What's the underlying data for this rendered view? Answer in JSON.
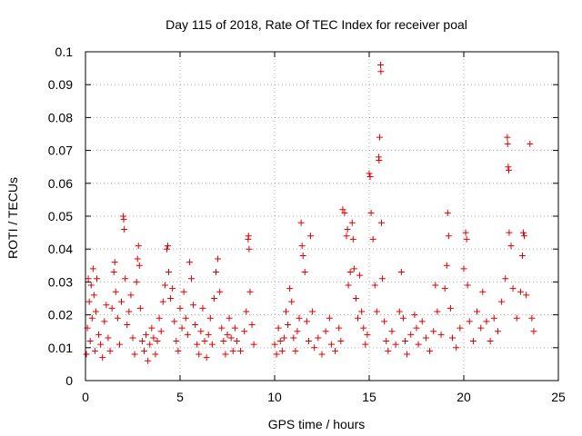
{
  "chart_data": {
    "type": "scatter",
    "title": "Day 115 of 2018, Rate Of TEC Index for receiver poal",
    "xlabel": "GPS time / hours",
    "ylabel": "ROTI / TECUs",
    "xlim": [
      0,
      25
    ],
    "ylim": [
      0,
      0.1
    ],
    "x_ticks": [
      0,
      5,
      10,
      15,
      20,
      25
    ],
    "x_tick_labels": [
      "0",
      "5",
      "10",
      "15",
      "20",
      "25"
    ],
    "y_ticks": [
      0,
      0.01,
      0.02,
      0.03,
      0.04,
      0.05,
      0.06,
      0.07,
      0.08,
      0.09,
      0.1
    ],
    "y_tick_labels": [
      "0",
      "0.01",
      "0.02",
      "0.03",
      "0.04",
      "0.05",
      "0.06",
      "0.07",
      "0.08",
      "0.09",
      "0.1"
    ],
    "grid": true,
    "marker": "+",
    "color": "#e00000",
    "series": [
      {
        "name": "ROTI",
        "points": [
          [
            0.05,
            0.008
          ],
          [
            0.1,
            0.016
          ],
          [
            0.15,
            0.031
          ],
          [
            0.2,
            0.024
          ],
          [
            0.25,
            0.012
          ],
          [
            0.3,
            0.029
          ],
          [
            0.35,
            0.019
          ],
          [
            0.4,
            0.034
          ],
          [
            0.45,
            0.026
          ],
          [
            0.5,
            0.009
          ],
          [
            0.55,
            0.021
          ],
          [
            0.6,
            0.031
          ],
          [
            0.7,
            0.014
          ],
          [
            0.8,
            0.011
          ],
          [
            0.9,
            0.007
          ],
          [
            1.0,
            0.018
          ],
          [
            1.1,
            0.023
          ],
          [
            1.2,
            0.013
          ],
          [
            1.3,
            0.009
          ],
          [
            1.4,
            0.022
          ],
          [
            1.5,
            0.033
          ],
          [
            1.55,
            0.036
          ],
          [
            1.6,
            0.027
          ],
          [
            1.7,
            0.019
          ],
          [
            1.8,
            0.011
          ],
          [
            1.9,
            0.024
          ],
          [
            2.0,
            0.05
          ],
          [
            2.02,
            0.049
          ],
          [
            2.05,
            0.046
          ],
          [
            2.1,
            0.031
          ],
          [
            2.2,
            0.017
          ],
          [
            2.3,
            0.021
          ],
          [
            2.4,
            0.026
          ],
          [
            2.5,
            0.013
          ],
          [
            2.6,
            0.008
          ],
          [
            2.7,
            0.03
          ],
          [
            2.75,
            0.037
          ],
          [
            2.8,
            0.041
          ],
          [
            2.85,
            0.035
          ],
          [
            2.9,
            0.022
          ],
          [
            3.0,
            0.012
          ],
          [
            3.1,
            0.009
          ],
          [
            3.2,
            0.014
          ],
          [
            3.3,
            0.006
          ],
          [
            3.4,
            0.011
          ],
          [
            3.5,
            0.016
          ],
          [
            3.6,
            0.013
          ],
          [
            3.7,
            0.008
          ],
          [
            3.8,
            0.012
          ],
          [
            3.9,
            0.019
          ],
          [
            4.0,
            0.015
          ],
          [
            4.1,
            0.024
          ],
          [
            4.2,
            0.029
          ],
          [
            4.3,
            0.04
          ],
          [
            4.35,
            0.041
          ],
          [
            4.4,
            0.033
          ],
          [
            4.5,
            0.025
          ],
          [
            4.6,
            0.028
          ],
          [
            4.7,
            0.018
          ],
          [
            4.8,
            0.012
          ],
          [
            4.9,
            0.009
          ],
          [
            5.0,
            0.022
          ],
          [
            5.1,
            0.016
          ],
          [
            5.2,
            0.027
          ],
          [
            5.3,
            0.019
          ],
          [
            5.4,
            0.014
          ],
          [
            5.5,
            0.036
          ],
          [
            5.6,
            0.031
          ],
          [
            5.7,
            0.023
          ],
          [
            5.8,
            0.017
          ],
          [
            5.9,
            0.011
          ],
          [
            6.0,
            0.008
          ],
          [
            6.1,
            0.015
          ],
          [
            6.2,
            0.022
          ],
          [
            6.3,
            0.012
          ],
          [
            6.4,
            0.007
          ],
          [
            6.5,
            0.014
          ],
          [
            6.6,
            0.019
          ],
          [
            6.7,
            0.011
          ],
          [
            6.8,
            0.025
          ],
          [
            6.9,
            0.033
          ],
          [
            7.0,
            0.037
          ],
          [
            7.1,
            0.027
          ],
          [
            7.2,
            0.016
          ],
          [
            7.3,
            0.012
          ],
          [
            7.4,
            0.008
          ],
          [
            7.5,
            0.014
          ],
          [
            7.6,
            0.019
          ],
          [
            7.7,
            0.013
          ],
          [
            7.8,
            0.009
          ],
          [
            7.9,
            0.016
          ],
          [
            8.0,
            0.012
          ],
          [
            8.2,
            0.009
          ],
          [
            8.4,
            0.015
          ],
          [
            8.5,
            0.021
          ],
          [
            8.6,
            0.043
          ],
          [
            8.62,
            0.044
          ],
          [
            8.65,
            0.04
          ],
          [
            8.7,
            0.027
          ],
          [
            8.8,
            0.017
          ],
          [
            8.9,
            0.011
          ],
          [
            10.0,
            0.011
          ],
          [
            10.1,
            0.008
          ],
          [
            10.2,
            0.016
          ],
          [
            10.3,
            0.012
          ],
          [
            10.4,
            0.009
          ],
          [
            10.5,
            0.013
          ],
          [
            10.6,
            0.021
          ],
          [
            10.7,
            0.017
          ],
          [
            10.8,
            0.028
          ],
          [
            10.9,
            0.024
          ],
          [
            11.0,
            0.013
          ],
          [
            11.1,
            0.009
          ],
          [
            11.2,
            0.015
          ],
          [
            11.3,
            0.019
          ],
          [
            11.4,
            0.048
          ],
          [
            11.45,
            0.041
          ],
          [
            11.5,
            0.038
          ],
          [
            11.6,
            0.033
          ],
          [
            11.7,
            0.018
          ],
          [
            11.8,
            0.012
          ],
          [
            11.9,
            0.044
          ],
          [
            12.0,
            0.021
          ],
          [
            12.1,
            0.01
          ],
          [
            12.3,
            0.013
          ],
          [
            12.5,
            0.008
          ],
          [
            12.7,
            0.015
          ],
          [
            12.9,
            0.019
          ],
          [
            13.0,
            0.011
          ],
          [
            13.2,
            0.009
          ],
          [
            13.4,
            0.016
          ],
          [
            13.5,
            0.012
          ],
          [
            13.6,
            0.052
          ],
          [
            13.7,
            0.051
          ],
          [
            13.8,
            0.044
          ],
          [
            13.85,
            0.046
          ],
          [
            13.9,
            0.029
          ],
          [
            14.0,
            0.033
          ],
          [
            14.1,
            0.048
          ],
          [
            14.15,
            0.043
          ],
          [
            14.2,
            0.034
          ],
          [
            14.3,
            0.025
          ],
          [
            14.4,
            0.019
          ],
          [
            14.5,
            0.032
          ],
          [
            14.6,
            0.021
          ],
          [
            14.7,
            0.016
          ],
          [
            14.8,
            0.011
          ],
          [
            14.9,
            0.014
          ],
          [
            15.0,
            0.063
          ],
          [
            15.05,
            0.062
          ],
          [
            15.1,
            0.051
          ],
          [
            15.2,
            0.043
          ],
          [
            15.3,
            0.029
          ],
          [
            15.4,
            0.021
          ],
          [
            15.5,
            0.068
          ],
          [
            15.52,
            0.067
          ],
          [
            15.55,
            0.074
          ],
          [
            15.6,
            0.096
          ],
          [
            15.62,
            0.094
          ],
          [
            15.65,
            0.048
          ],
          [
            15.7,
            0.031
          ],
          [
            15.8,
            0.018
          ],
          [
            15.9,
            0.012
          ],
          [
            16.0,
            0.009
          ],
          [
            16.2,
            0.015
          ],
          [
            16.4,
            0.011
          ],
          [
            16.6,
            0.021
          ],
          [
            16.7,
            0.033
          ],
          [
            16.8,
            0.019
          ],
          [
            16.9,
            0.012
          ],
          [
            17.0,
            0.008
          ],
          [
            17.2,
            0.014
          ],
          [
            17.4,
            0.02
          ],
          [
            17.5,
            0.016
          ],
          [
            17.6,
            0.011
          ],
          [
            17.8,
            0.018
          ],
          [
            18.0,
            0.013
          ],
          [
            18.2,
            0.009
          ],
          [
            18.4,
            0.015
          ],
          [
            18.5,
            0.029
          ],
          [
            18.6,
            0.021
          ],
          [
            18.8,
            0.014
          ],
          [
            19.0,
            0.028
          ],
          [
            19.1,
            0.035
          ],
          [
            19.15,
            0.051
          ],
          [
            19.2,
            0.044
          ],
          [
            19.3,
            0.022
          ],
          [
            19.4,
            0.013
          ],
          [
            19.6,
            0.01
          ],
          [
            19.8,
            0.016
          ],
          [
            20.0,
            0.034
          ],
          [
            20.1,
            0.045
          ],
          [
            20.15,
            0.043
          ],
          [
            20.2,
            0.029
          ],
          [
            20.3,
            0.018
          ],
          [
            20.5,
            0.012
          ],
          [
            20.7,
            0.021
          ],
          [
            20.9,
            0.016
          ],
          [
            21.0,
            0.027
          ],
          [
            21.2,
            0.018
          ],
          [
            21.4,
            0.012
          ],
          [
            21.6,
            0.019
          ],
          [
            21.8,
            0.015
          ],
          [
            22.0,
            0.024
          ],
          [
            22.2,
            0.031
          ],
          [
            22.3,
            0.074
          ],
          [
            22.32,
            0.072
          ],
          [
            22.35,
            0.065
          ],
          [
            22.38,
            0.064
          ],
          [
            22.4,
            0.045
          ],
          [
            22.5,
            0.041
          ],
          [
            22.6,
            0.028
          ],
          [
            22.8,
            0.019
          ],
          [
            23.0,
            0.027
          ],
          [
            23.1,
            0.038
          ],
          [
            23.15,
            0.045
          ],
          [
            23.2,
            0.044
          ],
          [
            23.3,
            0.026
          ],
          [
            23.5,
            0.072
          ],
          [
            23.6,
            0.019
          ],
          [
            23.7,
            0.015
          ]
        ]
      }
    ]
  }
}
